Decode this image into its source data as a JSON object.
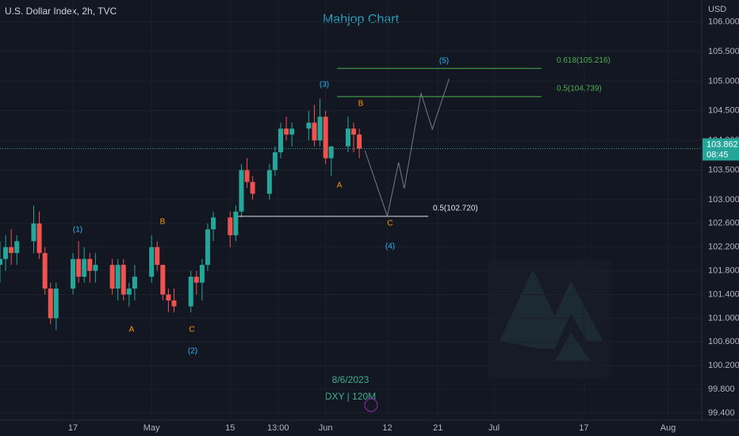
{
  "chart_data": {
    "type": "candlestick",
    "header": "U.S. Dollar Index, 2h, TVC",
    "title": "Mahjop Chart",
    "axis_unit": "USD",
    "watermark_date": "8/6/2023",
    "watermark_symbol": "DXY | 120M",
    "ylim": [
      99.28,
      106.37
    ],
    "yticks": [
      {
        "value": 106,
        "label": "106.000"
      },
      {
        "value": 105.5,
        "label": "105.500"
      },
      {
        "value": 105,
        "label": "105.000"
      },
      {
        "value": 104.5,
        "label": "104.500"
      },
      {
        "value": 104,
        "label": "104.000"
      },
      {
        "value": 103.5,
        "label": "103.500"
      },
      {
        "value": 103,
        "label": "103.000"
      },
      {
        "value": 102.6,
        "label": "102.600"
      },
      {
        "value": 102.2,
        "label": "102.200"
      },
      {
        "value": 101.8,
        "label": "101.800"
      },
      {
        "value": 101.4,
        "label": "101.400"
      },
      {
        "value": 101,
        "label": "101.000"
      },
      {
        "value": 100.6,
        "label": "100.600"
      },
      {
        "value": 100.2,
        "label": "100.200"
      },
      {
        "value": 99.8,
        "label": "99.800"
      },
      {
        "value": 99.4,
        "label": "99.400"
      }
    ],
    "xlim": [
      "2023-04-04",
      "2023-08-07"
    ],
    "xticks": [
      {
        "value": "2023-04-17",
        "label": "17"
      },
      {
        "value": "2023-05-01",
        "label": "May"
      },
      {
        "value": "2023-05-15",
        "label": "15"
      },
      {
        "value": "2023-05-23T13:00",
        "label": "13:00"
      },
      {
        "value": "2023-06-01",
        "label": "Jun"
      },
      {
        "value": "2023-06-12",
        "label": "12"
      },
      {
        "value": "2023-06-21",
        "label": "21"
      },
      {
        "value": "2023-07-01",
        "label": "Jul"
      },
      {
        "value": "2023-07-17",
        "label": "17"
      },
      {
        "value": "2023-08-01",
        "label": "Aug"
      }
    ],
    "up_color": "#26a69a",
    "down_color": "#ef5350",
    "candles": {
      "x": [
        "2023-04-04",
        "2023-04-05",
        "2023-04-06",
        "2023-04-07",
        "2023-04-10",
        "2023-04-11",
        "2023-04-12",
        "2023-04-13",
        "2023-04-14",
        "2023-04-17",
        "2023-04-18",
        "2023-04-19",
        "2023-04-20",
        "2023-04-21",
        "2023-04-24",
        "2023-04-25",
        "2023-04-26",
        "2023-04-27",
        "2023-04-28",
        "2023-05-01",
        "2023-05-02",
        "2023-05-03",
        "2023-05-04",
        "2023-05-05",
        "2023-05-08",
        "2023-05-09",
        "2023-05-10",
        "2023-05-11",
        "2023-05-12",
        "2023-05-15",
        "2023-05-16",
        "2023-05-17",
        "2023-05-18",
        "2023-05-19",
        "2023-05-22",
        "2023-05-23",
        "2023-05-24",
        "2023-05-25",
        "2023-05-26",
        "2023-05-29",
        "2023-05-30",
        "2023-05-31",
        "2023-06-01",
        "2023-06-02",
        "2023-06-05",
        "2023-06-06",
        "2023-06-07"
      ],
      "open": [
        101.9,
        102.0,
        102.2,
        102.1,
        102.3,
        102.6,
        102.1,
        101.5,
        101.0,
        101.5,
        102.0,
        101.7,
        102.0,
        101.8,
        101.9,
        101.5,
        101.9,
        101.4,
        101.5,
        101.7,
        102.2,
        101.9,
        101.4,
        101.3,
        101.2,
        101.7,
        101.6,
        101.9,
        102.5,
        102.7,
        102.4,
        102.8,
        103.5,
        103.3,
        103.1,
        103.5,
        103.8,
        104.2,
        104.1,
        104.2,
        104.3,
        104.0,
        104.4,
        103.7,
        103.9,
        104.2,
        104.1
      ],
      "high": [
        102.3,
        102.4,
        102.5,
        102.4,
        102.9,
        102.8,
        102.2,
        101.6,
        101.6,
        102.1,
        102.3,
        102.2,
        102.1,
        102.1,
        102.0,
        102.0,
        102.0,
        101.6,
        101.9,
        102.4,
        102.3,
        101.9,
        101.5,
        101.5,
        101.8,
        101.8,
        102.0,
        102.6,
        102.8,
        102.8,
        102.9,
        103.6,
        103.7,
        103.4,
        103.6,
        103.9,
        104.3,
        104.4,
        104.3,
        104.5,
        104.6,
        104.7,
        104.5,
        103.9,
        104.4,
        104.3,
        104.2
      ],
      "low": [
        101.6,
        101.8,
        101.9,
        101.9,
        102.1,
        102.0,
        101.4,
        100.9,
        100.8,
        101.4,
        101.6,
        101.6,
        101.6,
        101.6,
        101.4,
        101.3,
        101.3,
        101.2,
        101.3,
        101.6,
        101.8,
        101.3,
        101.1,
        101.1,
        101.1,
        101.4,
        101.3,
        101.8,
        102.3,
        102.2,
        102.3,
        102.7,
        103.2,
        103.0,
        103.0,
        103.4,
        103.7,
        104.0,
        103.9,
        104.0,
        103.9,
        103.9,
        103.6,
        103.4,
        103.8,
        103.8,
        103.7
      ],
      "close": [
        102.0,
        102.2,
        102.1,
        102.3,
        102.6,
        102.1,
        101.5,
        101.0,
        101.5,
        102.0,
        101.7,
        102.0,
        101.8,
        101.9,
        101.5,
        101.9,
        101.4,
        101.5,
        101.7,
        102.2,
        101.9,
        101.4,
        101.3,
        101.2,
        101.7,
        101.6,
        101.9,
        102.5,
        102.7,
        102.4,
        102.8,
        103.5,
        103.3,
        103.1,
        103.5,
        103.8,
        104.2,
        104.1,
        104.2,
        104.3,
        104.0,
        104.4,
        103.7,
        103.9,
        104.2,
        104.1,
        103.862
      ]
    },
    "last_price": {
      "value": 103.862,
      "label": "103.862",
      "countdown": "08:45",
      "color": "#26a69a"
    },
    "projection": {
      "x": [
        "2023-06-08",
        "2023-06-12",
        "2023-06-14",
        "2023-06-15",
        "2023-06-18",
        "2023-06-20",
        "2023-06-23"
      ],
      "y": [
        103.83,
        102.72,
        103.63,
        103.19,
        104.8,
        104.19,
        105.04
      ],
      "color": "#787b86"
    },
    "levels": [
      {
        "value": 105.216,
        "label": "0.618(105.216)",
        "color": "#4caf50"
      },
      {
        "value": 104.739,
        "label": "0.5(104.739)",
        "color": "#4caf50"
      },
      {
        "value": 102.72,
        "label": "0.5(102.720)",
        "color": "#e0e3eb"
      }
    ],
    "wave_labels": [
      "(1)",
      "(2)",
      "(3)",
      "(4)",
      "(5)"
    ],
    "correction_labels": [
      "A",
      "B",
      "C",
      "A",
      "B",
      "C"
    ]
  }
}
